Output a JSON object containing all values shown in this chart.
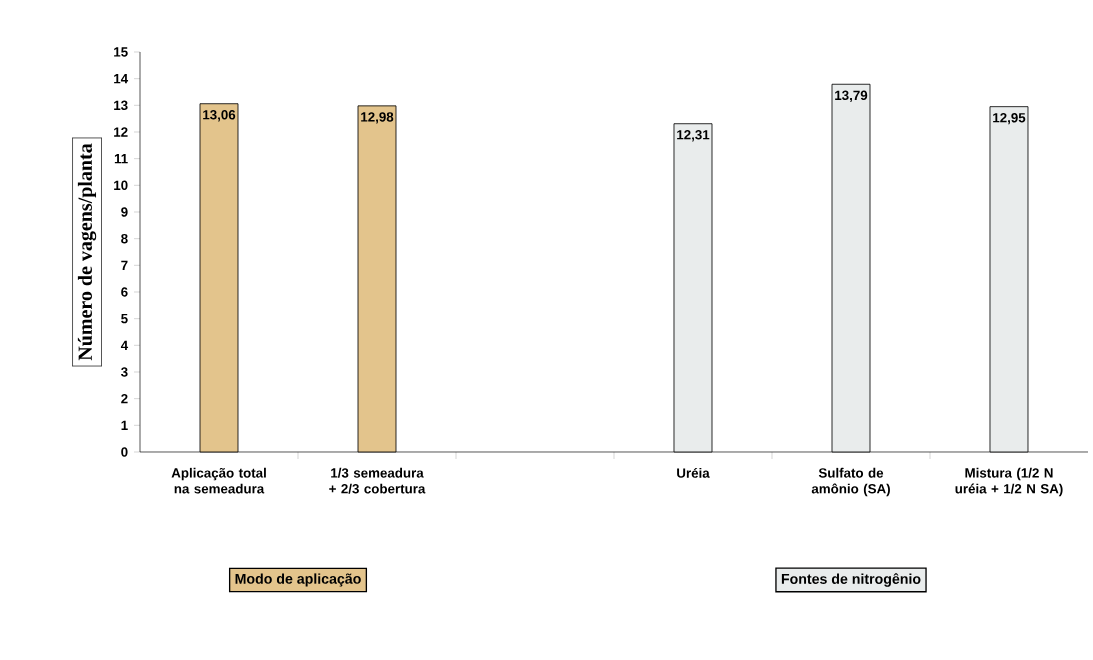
{
  "chart_data": {
    "type": "bar",
    "ylabel": "Número de vagens/planta",
    "categories": [
      "Aplicação total na semeadura",
      "1/3 semeadura + 2/3 cobertura",
      null,
      "Uréia",
      "Sulfato de amônio (SA)",
      "Mistura (1/2 N uréia + 1/2 N SA)"
    ],
    "values": [
      13.06,
      12.98,
      null,
      12.31,
      13.79,
      12.95
    ],
    "value_labels": [
      "13,06",
      "12,98",
      null,
      "12,31",
      "13,79",
      "12,95"
    ],
    "colors": [
      "#e3c48c",
      "#e3c48c",
      "#e3c48c",
      "#e9ecec",
      "#e9ecec",
      "#e9ecec"
    ],
    "ylim": [
      0,
      15
    ],
    "yticks": [
      0,
      1,
      2,
      3,
      4,
      5,
      6,
      7,
      8,
      9,
      10,
      11,
      12,
      13,
      14,
      15
    ],
    "grid": false,
    "annotations": [
      "Modo de aplicação",
      "Fontes de nitrogênio"
    ]
  }
}
